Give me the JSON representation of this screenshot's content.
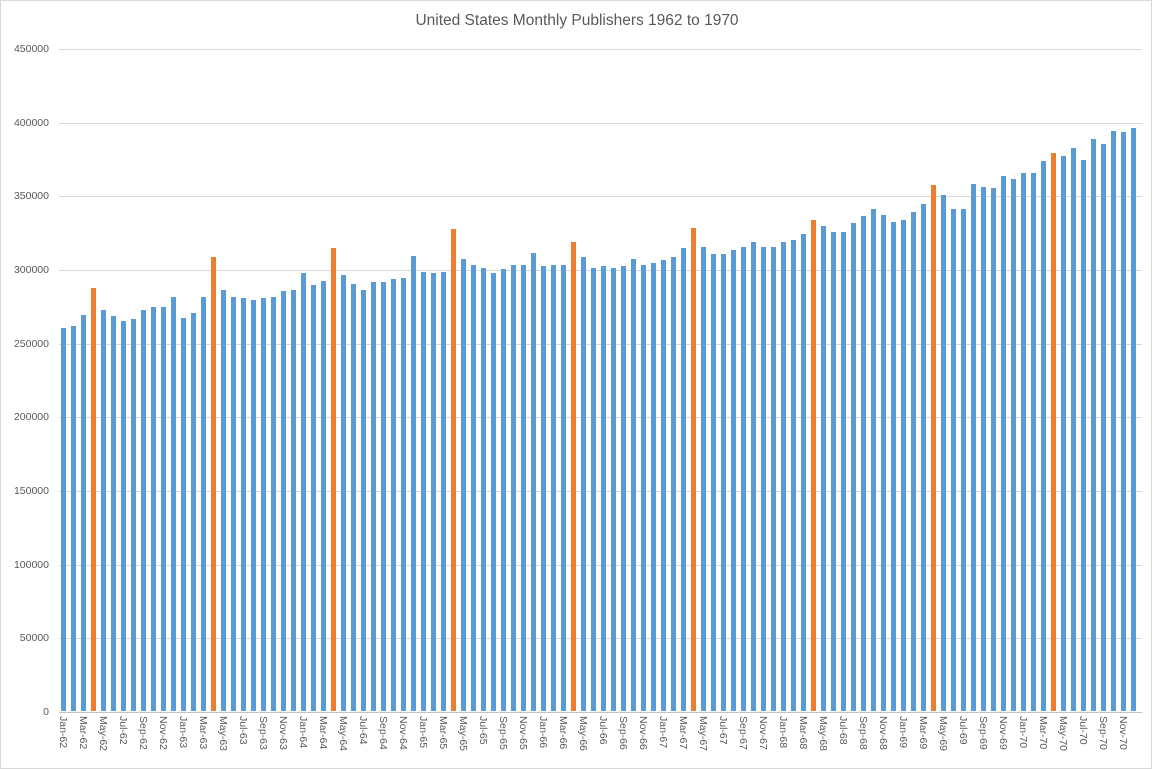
{
  "title": "United States Monthly Publishers 1962 to 1970",
  "colors": {
    "bar_primary": "#5B9BD5",
    "bar_highlight": "#ED7D31",
    "gridline": "#D9D9D9",
    "axis_text": "#595959"
  },
  "chart_data": {
    "type": "bar",
    "title": "United States Monthly Publishers 1962 to 1970",
    "xlabel": "",
    "ylabel": "",
    "ylim": [
      0,
      450000
    ],
    "grid": true,
    "y_tick_labels": [
      "0",
      "50000",
      "100000",
      "150000",
      "200000",
      "250000",
      "300000",
      "350000",
      "400000",
      "450000"
    ],
    "x_tick_labels": [
      "Jan-62",
      "Mar-62",
      "May-62",
      "Jul-62",
      "Sep-62",
      "Nov-62",
      "Jan-63",
      "Mar-63",
      "May-63",
      "Jul-63",
      "Sep-63",
      "Nov-63",
      "Jan-64",
      "Mar-64",
      "May-64",
      "Jul-64",
      "Sep-64",
      "Nov-64",
      "Jan-65",
      "Mar-65",
      "May-65",
      "Jul-65",
      "Sep-65",
      "Nov-65",
      "Jan-66",
      "Mar-66",
      "May-66",
      "Jul-66",
      "Sep-66",
      "Nov-66",
      "Jan-67",
      "Mar-67",
      "May-67",
      "Jul-67",
      "Sep-67",
      "Nov-67",
      "Jan-68",
      "Mar-68",
      "May-68",
      "Jul-68",
      "Sep-68",
      "Nov-68",
      "Jan-69",
      "Mar-69",
      "May-69",
      "Jul-69",
      "Sep-69",
      "Nov-69",
      "Jan-70",
      "Mar-70",
      "May-70",
      "Jul-70",
      "Sep-70",
      "Nov-70"
    ],
    "categories": [
      "Jan-62",
      "Feb-62",
      "Mar-62",
      "Apr-62",
      "May-62",
      "Jun-62",
      "Jul-62",
      "Aug-62",
      "Sep-62",
      "Oct-62",
      "Nov-62",
      "Dec-62",
      "Jan-63",
      "Feb-63",
      "Mar-63",
      "Apr-63",
      "May-63",
      "Jun-63",
      "Jul-63",
      "Aug-63",
      "Sep-63",
      "Oct-63",
      "Nov-63",
      "Dec-63",
      "Jan-64",
      "Feb-64",
      "Mar-64",
      "Apr-64",
      "May-64",
      "Jun-64",
      "Jul-64",
      "Aug-64",
      "Sep-64",
      "Oct-64",
      "Nov-64",
      "Dec-64",
      "Jan-65",
      "Feb-65",
      "Mar-65",
      "Apr-65",
      "May-65",
      "Jun-65",
      "Jul-65",
      "Aug-65",
      "Sep-65",
      "Oct-65",
      "Nov-65",
      "Dec-65",
      "Jan-66",
      "Feb-66",
      "Mar-66",
      "Apr-66",
      "May-66",
      "Jun-66",
      "Jul-66",
      "Aug-66",
      "Sep-66",
      "Oct-66",
      "Nov-66",
      "Dec-66",
      "Jan-67",
      "Feb-67",
      "Mar-67",
      "Apr-67",
      "May-67",
      "Jun-67",
      "Jul-67",
      "Aug-67",
      "Sep-67",
      "Oct-67",
      "Nov-67",
      "Dec-67",
      "Jan-68",
      "Feb-68",
      "Mar-68",
      "Apr-68",
      "May-68",
      "Jun-68",
      "Jul-68",
      "Aug-68",
      "Sep-68",
      "Oct-68",
      "Nov-68",
      "Dec-68",
      "Jan-69",
      "Feb-69",
      "Mar-69",
      "Apr-69",
      "May-69",
      "Jun-69",
      "Jul-69",
      "Aug-69",
      "Sep-69",
      "Oct-69",
      "Nov-69",
      "Dec-69",
      "Jan-70",
      "Feb-70",
      "Mar-70",
      "Apr-70",
      "May-70",
      "Jun-70",
      "Jul-70",
      "Aug-70",
      "Sep-70",
      "Oct-70",
      "Nov-70",
      "Dec-70"
    ],
    "values": [
      260000,
      261000,
      269000,
      287000,
      272000,
      268000,
      265000,
      266000,
      272000,
      274000,
      274000,
      281000,
      267000,
      270000,
      281000,
      308000,
      286000,
      281000,
      280000,
      279000,
      280000,
      281000,
      285000,
      286000,
      297000,
      289000,
      292000,
      314000,
      296000,
      290000,
      286000,
      291000,
      291000,
      293000,
      294000,
      309000,
      298000,
      297000,
      298000,
      327000,
      307000,
      303000,
      301000,
      297000,
      300000,
      303000,
      303000,
      311000,
      302000,
      303000,
      303000,
      318000,
      308000,
      301000,
      302000,
      301000,
      302000,
      307000,
      303000,
      304000,
      306000,
      308000,
      314000,
      328000,
      315000,
      310000,
      310000,
      313000,
      315000,
      318000,
      315000,
      315000,
      318000,
      320000,
      324000,
      333000,
      329000,
      325000,
      325000,
      331000,
      336000,
      341000,
      337000,
      332000,
      333000,
      339000,
      344000,
      357000,
      350000,
      341000,
      341000,
      358000,
      356000,
      355000,
      363000,
      361000,
      365000,
      365000,
      373000,
      379000,
      377000,
      382000,
      374000,
      388000,
      385000,
      394000,
      393000,
      396000
    ],
    "highlighted_categories": [
      "Apr-62",
      "Apr-63",
      "Apr-64",
      "Apr-65",
      "Apr-66",
      "Apr-67",
      "Apr-68",
      "Apr-69",
      "Apr-70"
    ],
    "legend": "none"
  }
}
